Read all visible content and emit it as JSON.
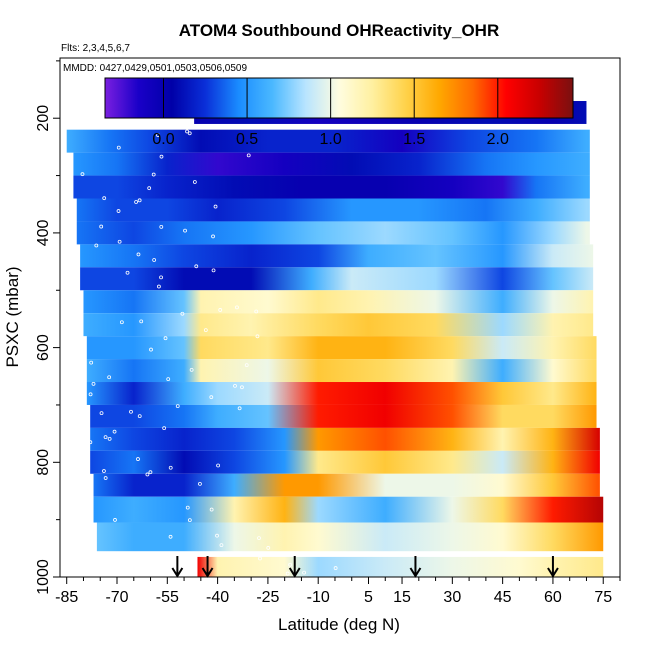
{
  "chart_data": {
    "type": "heatmap",
    "title": "ATOM4 Southbound OHReactivity_OHR",
    "flights_label": "Flts: 2,3,4,5,6,7",
    "dates_label": "MMDD: 0427,0429,0501,0503,0506,0509",
    "xlabel": "Latitude (deg N)",
    "ylabel": "PSXC (mbar)",
    "xlim": [
      -87,
      80
    ],
    "ylim": [
      1000,
      95
    ],
    "x_ticks": [
      -85,
      -70,
      -55,
      -40,
      -25,
      -10,
      5,
      15,
      30,
      45,
      60,
      75
    ],
    "x_tick_labels": [
      "-85",
      "-70",
      "-55",
      "-40",
      "-25",
      "-10",
      "5",
      "15",
      "30",
      "45",
      "60",
      "75"
    ],
    "y_ticks": [
      200,
      400,
      600,
      800,
      1000
    ],
    "y_tick_labels": [
      "200",
      "400",
      "600",
      "800",
      "1000"
    ],
    "colorbar": {
      "range": [
        -0.35,
        2.45
      ],
      "ticks": [
        0.0,
        0.5,
        1.0,
        1.5,
        2.0
      ],
      "tick_labels": [
        "0.0",
        "0.5",
        "1.0",
        "1.5",
        "2.0"
      ],
      "colors": [
        "#7a1fe0",
        "#1a00c8",
        "#0000a8",
        "#0a2fd8",
        "#1a8cff",
        "#4ab8ff",
        "#b8e4ff",
        "#fffde0",
        "#fff0a0",
        "#ffd24a",
        "#ffa800",
        "#ff6a00",
        "#ff0000",
        "#c80000",
        "#7a1010"
      ]
    },
    "layers": [
      {
        "p_top": 170,
        "p_bot": 210,
        "x_start": -47,
        "x_end": 70,
        "stops": [
          [
            -47,
            0.0
          ],
          [
            -30,
            0.1
          ],
          [
            -10,
            -0.1
          ],
          [
            20,
            0.0
          ],
          [
            40,
            0.1
          ],
          [
            60,
            0.0
          ],
          [
            70,
            0.1
          ]
        ]
      },
      {
        "p_top": 220,
        "p_bot": 260,
        "x_start": -85,
        "x_end": 71,
        "stops": [
          [
            -85,
            0.6
          ],
          [
            -72,
            0.4
          ],
          [
            -60,
            0.3
          ],
          [
            -45,
            0.1
          ],
          [
            -25,
            0.2
          ],
          [
            -5,
            0.2
          ],
          [
            15,
            -0.1
          ],
          [
            35,
            0.3
          ],
          [
            55,
            0.4
          ],
          [
            70,
            0.6
          ]
        ]
      },
      {
        "p_top": 260,
        "p_bot": 300,
        "x_start": -83,
        "x_end": 71,
        "stops": [
          [
            -83,
            0.5
          ],
          [
            -70,
            0.4
          ],
          [
            -55,
            0.2
          ],
          [
            -40,
            -0.2
          ],
          [
            -20,
            -0.1
          ],
          [
            0,
            0.1
          ],
          [
            20,
            0.2
          ],
          [
            40,
            0.4
          ],
          [
            55,
            0.5
          ],
          [
            70,
            0.6
          ]
        ]
      },
      {
        "p_top": 300,
        "p_bot": 340,
        "x_start": -83,
        "x_end": 71,
        "stops": [
          [
            -83,
            0.3
          ],
          [
            -70,
            0.3
          ],
          [
            -55,
            0.2
          ],
          [
            -35,
            0.1
          ],
          [
            -15,
            0.0
          ],
          [
            10,
            0.0
          ],
          [
            30,
            -0.1
          ],
          [
            45,
            -0.2
          ],
          [
            55,
            0.4
          ],
          [
            70,
            0.6
          ]
        ]
      },
      {
        "p_top": 340,
        "p_bot": 380,
        "x_start": -82,
        "x_end": 71,
        "stops": [
          [
            -82,
            0.4
          ],
          [
            -70,
            0.3
          ],
          [
            -55,
            0.3
          ],
          [
            -40,
            0.2
          ],
          [
            -20,
            0.3
          ],
          [
            0,
            0.5
          ],
          [
            20,
            0.5
          ],
          [
            40,
            0.4
          ],
          [
            55,
            0.6
          ],
          [
            70,
            0.8
          ]
        ]
      },
      {
        "p_top": 380,
        "p_bot": 420,
        "x_start": -82,
        "x_end": 71,
        "stops": [
          [
            -82,
            0.4
          ],
          [
            -65,
            0.3
          ],
          [
            -50,
            0.4
          ],
          [
            -30,
            0.5
          ],
          [
            -10,
            0.7
          ],
          [
            10,
            0.8
          ],
          [
            30,
            0.7
          ],
          [
            45,
            0.5
          ],
          [
            60,
            0.8
          ],
          [
            70,
            1.0
          ]
        ]
      },
      {
        "p_top": 420,
        "p_bot": 460,
        "x_start": -81,
        "x_end": 72,
        "stops": [
          [
            -81,
            0.5
          ],
          [
            -65,
            0.4
          ],
          [
            -50,
            0.3
          ],
          [
            -30,
            0.2
          ],
          [
            -10,
            0.3
          ],
          [
            5,
            0.6
          ],
          [
            25,
            0.7
          ],
          [
            45,
            0.5
          ],
          [
            60,
            0.9
          ],
          [
            72,
            1.0
          ]
        ]
      },
      {
        "p_top": 460,
        "p_bot": 500,
        "x_start": -81,
        "x_end": 72,
        "stops": [
          [
            -81,
            0.3
          ],
          [
            -65,
            0.3
          ],
          [
            -50,
            0.1
          ],
          [
            -30,
            0.1
          ],
          [
            -12,
            0.6
          ],
          [
            0,
            0.9
          ],
          [
            25,
            0.8
          ],
          [
            45,
            0.3
          ],
          [
            60,
            0.7
          ],
          [
            72,
            0.9
          ]
        ]
      },
      {
        "p_top": 500,
        "p_bot": 540,
        "x_start": -80,
        "x_end": 72,
        "stops": [
          [
            -80,
            0.5
          ],
          [
            -65,
            0.4
          ],
          [
            -50,
            0.7
          ],
          [
            -45,
            1.2
          ],
          [
            -25,
            1.1
          ],
          [
            -10,
            1.3
          ],
          [
            5,
            1.2
          ],
          [
            25,
            1.0
          ],
          [
            45,
            0.6
          ],
          [
            60,
            1.0
          ],
          [
            72,
            1.2
          ]
        ]
      },
      {
        "p_top": 540,
        "p_bot": 580,
        "x_start": -80,
        "x_end": 72,
        "stops": [
          [
            -80,
            0.6
          ],
          [
            -65,
            0.5
          ],
          [
            -50,
            0.8
          ],
          [
            -45,
            1.3
          ],
          [
            -30,
            1.2
          ],
          [
            -10,
            1.4
          ],
          [
            5,
            1.5
          ],
          [
            25,
            1.4
          ],
          [
            45,
            0.8
          ],
          [
            60,
            1.2
          ],
          [
            72,
            1.3
          ]
        ]
      },
      {
        "p_top": 580,
        "p_bot": 620,
        "x_start": -79,
        "x_end": 73,
        "stops": [
          [
            -79,
            0.5
          ],
          [
            -65,
            0.5
          ],
          [
            -50,
            0.7
          ],
          [
            -45,
            1.4
          ],
          [
            -25,
            1.3
          ],
          [
            -10,
            1.6
          ],
          [
            10,
            1.6
          ],
          [
            30,
            1.4
          ],
          [
            45,
            0.9
          ],
          [
            60,
            1.2
          ],
          [
            73,
            1.4
          ]
        ]
      },
      {
        "p_top": 620,
        "p_bot": 660,
        "x_start": -79,
        "x_end": 73,
        "stops": [
          [
            -79,
            0.6
          ],
          [
            -65,
            0.4
          ],
          [
            -50,
            0.6
          ],
          [
            -45,
            1.2
          ],
          [
            -25,
            1.0
          ],
          [
            -10,
            1.5
          ],
          [
            10,
            1.4
          ],
          [
            30,
            1.2
          ],
          [
            45,
            0.6
          ],
          [
            60,
            1.1
          ],
          [
            73,
            1.4
          ]
        ]
      },
      {
        "p_top": 660,
        "p_bot": 700,
        "x_start": -79,
        "x_end": 73,
        "stops": [
          [
            -79,
            0.5
          ],
          [
            -65,
            0.2
          ],
          [
            -50,
            0.6
          ],
          [
            -40,
            0.8
          ],
          [
            -25,
            0.9
          ],
          [
            -10,
            2.0
          ],
          [
            10,
            2.1
          ],
          [
            30,
            1.9
          ],
          [
            45,
            1.5
          ],
          [
            60,
            1.3
          ],
          [
            73,
            1.6
          ]
        ]
      },
      {
        "p_top": 700,
        "p_bot": 740,
        "x_start": -78,
        "x_end": 73,
        "stops": [
          [
            -78,
            0.3
          ],
          [
            -65,
            0.3
          ],
          [
            -50,
            0.4
          ],
          [
            -40,
            0.6
          ],
          [
            -25,
            0.7
          ],
          [
            -10,
            2.0
          ],
          [
            10,
            2.1
          ],
          [
            30,
            1.9
          ],
          [
            45,
            1.4
          ],
          [
            60,
            1.4
          ],
          [
            73,
            1.7
          ]
        ]
      },
      {
        "p_top": 740,
        "p_bot": 780,
        "x_start": -78,
        "x_end": 74,
        "stops": [
          [
            -78,
            0.4
          ],
          [
            -65,
            0.3
          ],
          [
            -50,
            0.2
          ],
          [
            -35,
            0.3
          ],
          [
            -20,
            0.5
          ],
          [
            -10,
            1.7
          ],
          [
            10,
            1.9
          ],
          [
            30,
            1.6
          ],
          [
            45,
            1.2
          ],
          [
            60,
            1.6
          ],
          [
            74,
            2.2
          ]
        ]
      },
      {
        "p_top": 780,
        "p_bot": 820,
        "x_start": -78,
        "x_end": 74,
        "stops": [
          [
            -78,
            0.3
          ],
          [
            -65,
            0.4
          ],
          [
            -50,
            0.1
          ],
          [
            -35,
            0.3
          ],
          [
            -20,
            0.5
          ],
          [
            -10,
            1.3
          ],
          [
            10,
            1.5
          ],
          [
            30,
            1.3
          ],
          [
            45,
            0.9
          ],
          [
            60,
            1.6
          ],
          [
            74,
            2.1
          ]
        ]
      },
      {
        "p_top": 820,
        "p_bot": 860,
        "x_start": -77,
        "x_end": 74,
        "stops": [
          [
            -77,
            0.4
          ],
          [
            -65,
            0.2
          ],
          [
            -50,
            0.2
          ],
          [
            -35,
            0.6
          ],
          [
            -20,
            1.7
          ],
          [
            -10,
            1.7
          ],
          [
            10,
            1.0
          ],
          [
            30,
            1.0
          ],
          [
            45,
            1.1
          ],
          [
            60,
            1.5
          ],
          [
            74,
            1.9
          ]
        ]
      },
      {
        "p_top": 860,
        "p_bot": 905,
        "x_start": -77,
        "x_end": 75,
        "stops": [
          [
            -77,
            0.5
          ],
          [
            -65,
            0.6
          ],
          [
            -50,
            0.5
          ],
          [
            -35,
            1.2
          ],
          [
            -20,
            1.6
          ],
          [
            -10,
            0.8
          ],
          [
            10,
            0.6
          ],
          [
            30,
            1.0
          ],
          [
            45,
            1.4
          ],
          [
            60,
            2.0
          ],
          [
            75,
            2.3
          ]
        ]
      },
      {
        "p_top": 905,
        "p_bot": 955,
        "x_start": -76,
        "x_end": 75,
        "stops": [
          [
            -76,
            0.7
          ],
          [
            -65,
            0.6
          ],
          [
            -50,
            0.6
          ],
          [
            -35,
            1.0
          ],
          [
            -20,
            1.2
          ],
          [
            -10,
            1.1
          ],
          [
            10,
            0.9
          ],
          [
            30,
            1.0
          ],
          [
            45,
            1.1
          ],
          [
            60,
            1.4
          ],
          [
            75,
            1.7
          ]
        ]
      },
      {
        "p_top": 965,
        "p_bot": 1000,
        "x_start": -46,
        "x_end": 75,
        "stops": [
          [
            -46,
            2.1
          ],
          [
            -40,
            1.2
          ],
          [
            -20,
            1.1
          ],
          [
            -10,
            0.8
          ],
          [
            10,
            0.9
          ],
          [
            30,
            1.0
          ],
          [
            50,
            1.1
          ],
          [
            60,
            1.2
          ],
          [
            75,
            1.3
          ]
        ]
      }
    ],
    "arrow_latitudes": [
      -52,
      -43,
      -17,
      19,
      60
    ]
  }
}
